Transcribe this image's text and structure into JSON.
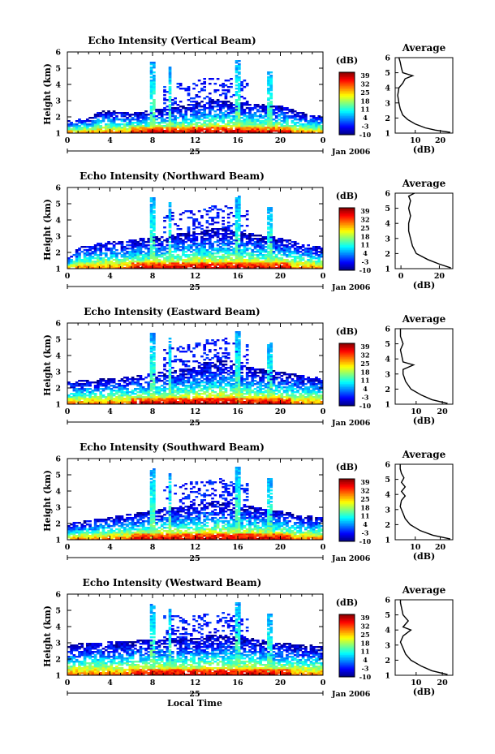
{
  "chart_data": [
    {
      "type": "heatmap",
      "title": "Echo Intensity (Vertical Beam)",
      "ylabel": "Height (km)",
      "ylim": [
        1,
        6
      ],
      "xlim": [
        0,
        24
      ],
      "x_ticks": [
        "0",
        "4",
        "8",
        "12",
        "16",
        "20",
        "0"
      ],
      "date_label": "25",
      "date_suffix": "Jan 2006",
      "colorbar_label": "(dB)",
      "colorbar_ticks": [
        "39",
        "32",
        "25",
        "18",
        "11",
        "4",
        "-3",
        "-10"
      ],
      "profile": {
        "title": "Average",
        "xlabel": "(dB)",
        "x_ticks": [
          "10",
          "20"
        ],
        "xlim": [
          2,
          25
        ],
        "y_ticks": [
          "1",
          "2",
          "3",
          "4",
          "5",
          "6"
        ],
        "points": [
          [
            24,
            1.05
          ],
          [
            18,
            1.2
          ],
          [
            14,
            1.35
          ],
          [
            10,
            1.6
          ],
          [
            7,
            1.9
          ],
          [
            5,
            2.2
          ],
          [
            4,
            2.6
          ],
          [
            3.5,
            3.0
          ],
          [
            3,
            3.5
          ],
          [
            3.5,
            4.0
          ],
          [
            5,
            4.3
          ],
          [
            6,
            4.6
          ],
          [
            9,
            4.8
          ],
          [
            5,
            5.0
          ],
          [
            4.5,
            5.3
          ],
          [
            4,
            5.7
          ],
          [
            3.5,
            6.0
          ]
        ]
      }
    },
    {
      "type": "heatmap",
      "title": "Echo Intensity (Northward Beam)",
      "ylabel": "Height (km)",
      "ylim": [
        1,
        6
      ],
      "xlim": [
        0,
        24
      ],
      "x_ticks": [
        "0",
        "4",
        "8",
        "12",
        "16",
        "20",
        "0"
      ],
      "date_label": "25",
      "date_suffix": "Jan 2006",
      "colorbar_label": "(dB)",
      "colorbar_ticks": [
        "39",
        "32",
        "25",
        "18",
        "11",
        "4",
        "-3",
        "-10"
      ],
      "profile": {
        "title": "Average",
        "xlabel": "(dB)",
        "x_ticks": [
          "0",
          "20"
        ],
        "xlim": [
          -3,
          27
        ],
        "y_ticks": [
          "1",
          "2",
          "3",
          "4",
          "5",
          "6"
        ],
        "points": [
          [
            26,
            1.05
          ],
          [
            20,
            1.3
          ],
          [
            14,
            1.6
          ],
          [
            8,
            2.0
          ],
          [
            6,
            2.5
          ],
          [
            5,
            3.0
          ],
          [
            4,
            3.5
          ],
          [
            4,
            4.0
          ],
          [
            5,
            4.5
          ],
          [
            4,
            5.0
          ],
          [
            5,
            5.5
          ],
          [
            4,
            5.8
          ],
          [
            7,
            6.0
          ]
        ]
      }
    },
    {
      "type": "heatmap",
      "title": "Echo Intensity (Eastward Beam)",
      "ylabel": "Height (km)",
      "ylim": [
        1,
        6
      ],
      "xlim": [
        0,
        24
      ],
      "x_ticks": [
        "0",
        "4",
        "8",
        "12",
        "16",
        "20",
        "0"
      ],
      "date_label": "25",
      "date_suffix": "Jan 2006",
      "colorbar_label": "(dB)",
      "colorbar_ticks": [
        "39",
        "32",
        "25",
        "18",
        "11",
        "4",
        "-3",
        "-10"
      ],
      "profile": {
        "title": "Average",
        "xlabel": "(dB)",
        "x_ticks": [
          "10",
          "20"
        ],
        "xlim": [
          2,
          24
        ],
        "y_ticks": [
          "1",
          "2",
          "3",
          "4",
          "5",
          "6"
        ],
        "points": [
          [
            22,
            1.05
          ],
          [
            16,
            1.3
          ],
          [
            12,
            1.6
          ],
          [
            8,
            2.0
          ],
          [
            6,
            2.5
          ],
          [
            5,
            3.0
          ],
          [
            5,
            3.3
          ],
          [
            9,
            3.6
          ],
          [
            5,
            3.8
          ],
          [
            4.5,
            4.2
          ],
          [
            4,
            4.6
          ],
          [
            5,
            5.0
          ],
          [
            4,
            5.5
          ],
          [
            4,
            6.0
          ]
        ]
      }
    },
    {
      "type": "heatmap",
      "title": "Echo Intensity (Southward Beam)",
      "ylabel": "Height (km)",
      "ylim": [
        1,
        6
      ],
      "xlim": [
        0,
        24
      ],
      "x_ticks": [
        "0",
        "4",
        "8",
        "12",
        "16",
        "20",
        "0"
      ],
      "date_label": "25",
      "date_suffix": "Jan 2006",
      "colorbar_label": "(dB)",
      "colorbar_ticks": [
        "39",
        "32",
        "25",
        "18",
        "11",
        "4",
        "-3",
        "-10"
      ],
      "profile": {
        "title": "Average",
        "xlabel": "(dB)",
        "x_ticks": [
          "10",
          "20"
        ],
        "xlim": [
          2,
          25
        ],
        "y_ticks": [
          "1",
          "2",
          "3",
          "4",
          "5",
          "6"
        ],
        "points": [
          [
            24,
            1.05
          ],
          [
            17,
            1.3
          ],
          [
            12,
            1.6
          ],
          [
            8,
            2.0
          ],
          [
            6,
            2.4
          ],
          [
            5,
            2.8
          ],
          [
            4,
            3.2
          ],
          [
            4.5,
            3.6
          ],
          [
            6,
            3.9
          ],
          [
            4.5,
            4.2
          ],
          [
            6,
            4.5
          ],
          [
            4.5,
            4.8
          ],
          [
            5.5,
            5.1
          ],
          [
            4.5,
            5.4
          ],
          [
            4,
            5.7
          ],
          [
            4,
            6.0
          ]
        ]
      }
    },
    {
      "type": "heatmap",
      "title": "Echo Intensity (Westward Beam)",
      "ylabel": "Height (km)",
      "ylim": [
        1,
        6
      ],
      "xlim": [
        0,
        24
      ],
      "x_ticks": [
        "0",
        "4",
        "8",
        "12",
        "16",
        "20",
        "0"
      ],
      "date_label": "25",
      "date_suffix": "Jan 2006",
      "xlabel": "Local Time",
      "colorbar_label": "(dB)",
      "colorbar_ticks": [
        "39",
        "32",
        "25",
        "18",
        "11",
        "4",
        "-3",
        "-10"
      ],
      "profile": {
        "title": "Average",
        "xlabel": "(dB)",
        "x_ticks": [
          "10",
          "20"
        ],
        "xlim": [
          2,
          24
        ],
        "y_ticks": [
          "1",
          "2",
          "3",
          "4",
          "5",
          "6"
        ],
        "points": [
          [
            22,
            1.05
          ],
          [
            16,
            1.3
          ],
          [
            12,
            1.6
          ],
          [
            8,
            2.0
          ],
          [
            6,
            2.4
          ],
          [
            5,
            2.8
          ],
          [
            4,
            3.2
          ],
          [
            5,
            3.6
          ],
          [
            8,
            4.0
          ],
          [
            5,
            4.2
          ],
          [
            7,
            4.6
          ],
          [
            5,
            5.0
          ],
          [
            4.5,
            5.4
          ],
          [
            4,
            5.8
          ],
          [
            4,
            6.0
          ]
        ]
      }
    }
  ]
}
